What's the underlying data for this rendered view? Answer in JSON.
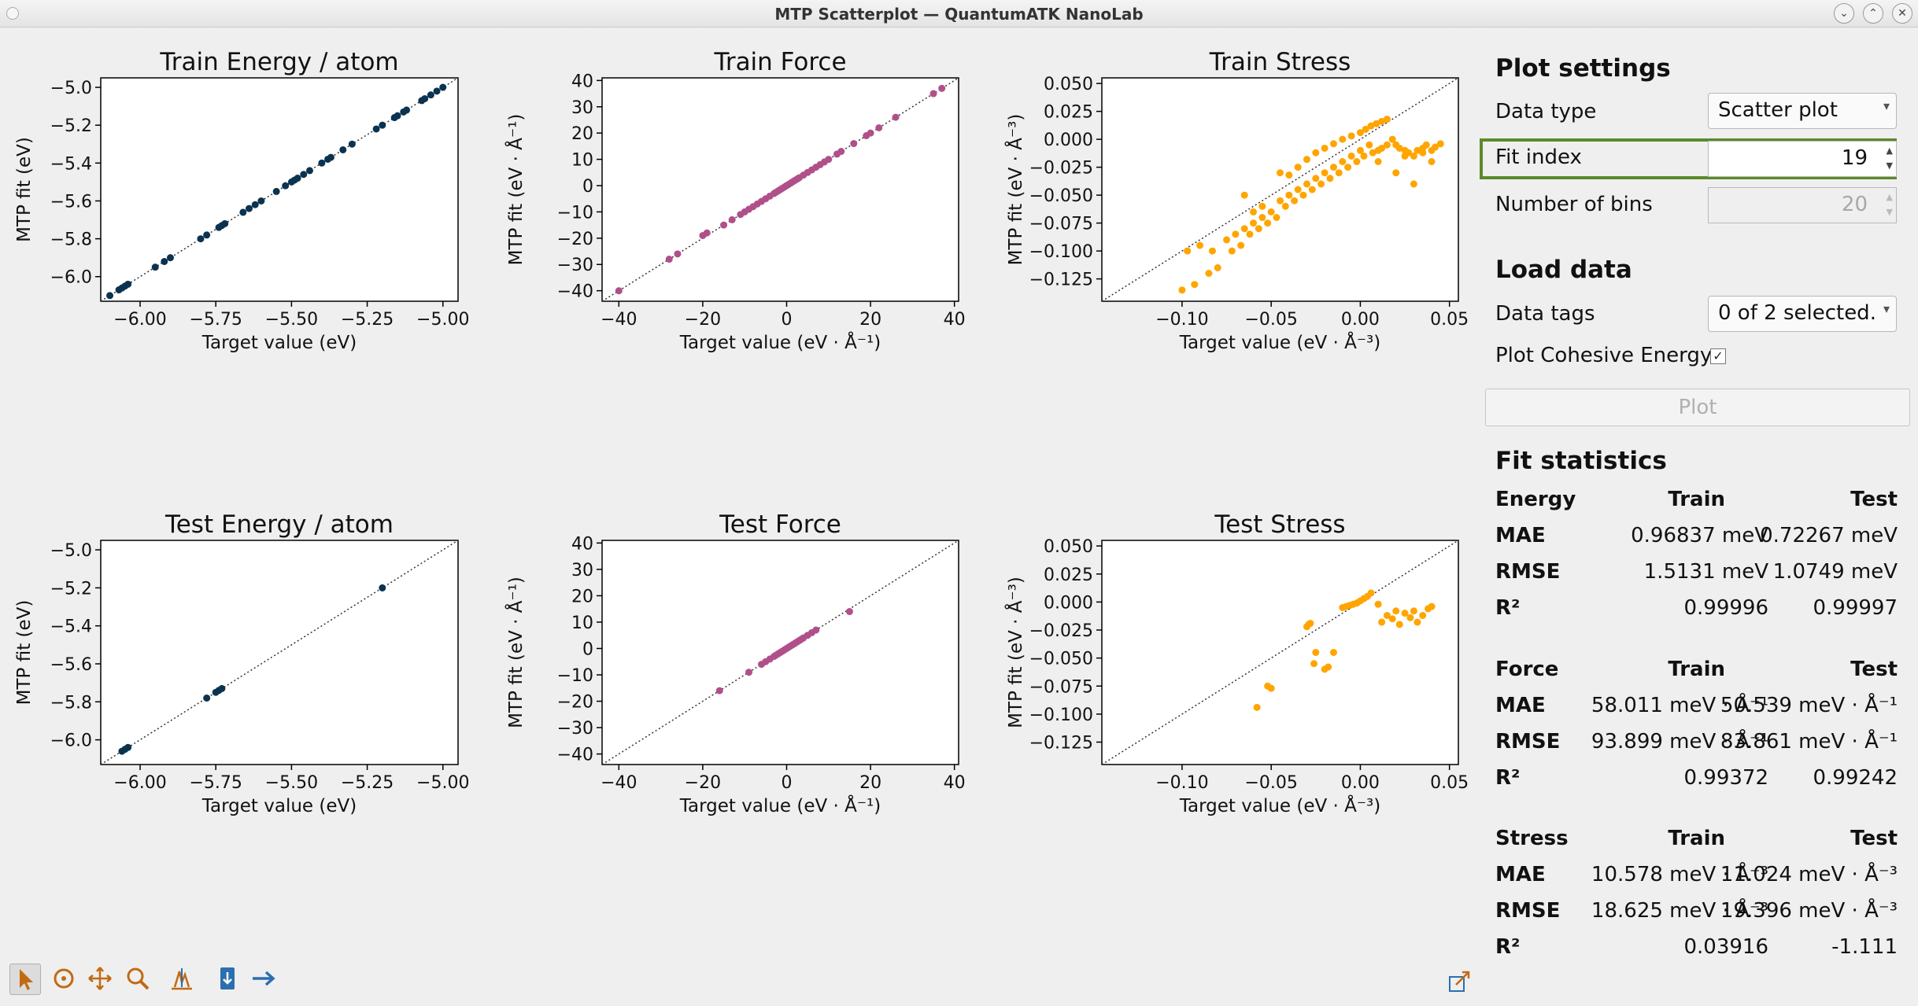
{
  "window": {
    "title": "MTP Scatterplot — QuantumATK NanoLab"
  },
  "toolbar": {
    "icons": [
      "pointer-icon",
      "pan-icon",
      "move-icon",
      "zoom-icon",
      "fit-icon",
      "save-icon",
      "export-icon"
    ],
    "bottom_right_icon": "popout-icon"
  },
  "settings": {
    "heading": "Plot settings",
    "data_type_label": "Data type",
    "data_type_value": "Scatter plot",
    "fit_index_label": "Fit index",
    "fit_index_value": "19",
    "bins_label": "Number of bins",
    "bins_value": "20"
  },
  "load": {
    "heading": "Load data",
    "tags_label": "Data tags",
    "tags_value": "0 of 2 selected.",
    "cohesive_label": "Plot Cohesive Energy",
    "cohesive_checked": "✓",
    "plot_button": "Plot"
  },
  "stats": {
    "heading": "Fit statistics",
    "col_train": "Train",
    "col_test": "Test",
    "groups": [
      {
        "name": "Energy",
        "rows": [
          {
            "label": "MAE",
            "train": "0.96837 meV",
            "test": "0.72267 meV"
          },
          {
            "label": "RMSE",
            "train": "1.5131 meV",
            "test": "1.0749 meV"
          },
          {
            "label": "R²",
            "train": "0.99996",
            "test": "0.99997"
          }
        ]
      },
      {
        "name": "Force",
        "rows": [
          {
            "label": "MAE",
            "train": "58.011 meV · Å⁻¹",
            "test": "50.539 meV · Å⁻¹"
          },
          {
            "label": "RMSE",
            "train": "93.899 meV · Å⁻¹",
            "test": "83.861 meV · Å⁻¹"
          },
          {
            "label": "R²",
            "train": "0.99372",
            "test": "0.99242"
          }
        ]
      },
      {
        "name": "Stress",
        "rows": [
          {
            "label": "MAE",
            "train": "10.578 meV · Å⁻³",
            "test": "11.024 meV · Å⁻³"
          },
          {
            "label": "RMSE",
            "train": "18.625 meV · Å⁻³",
            "test": "19.396 meV · Å⁻³"
          },
          {
            "label": "R²",
            "train": "0.03916",
            "test": "-1.111"
          }
        ]
      }
    ]
  },
  "chart_data": [
    {
      "type": "scatter",
      "title": "Train Energy / atom",
      "xlabel": "Target value (eV)",
      "ylabel": "MTP fit (eV)",
      "xlim": [
        -6.13,
        -4.95
      ],
      "ylim": [
        -6.13,
        -4.95
      ],
      "xticks": [
        -6.0,
        -5.75,
        -5.5,
        -5.25,
        -5.0
      ],
      "yticks": [
        -6.0,
        -5.8,
        -5.6,
        -5.4,
        -5.2,
        -5.0
      ],
      "color": "#0b3350",
      "diagonal": true,
      "x": [
        -6.1,
        -6.07,
        -6.06,
        -6.05,
        -6.04,
        -5.95,
        -5.92,
        -5.9,
        -5.8,
        -5.78,
        -5.74,
        -5.73,
        -5.72,
        -5.66,
        -5.64,
        -5.62,
        -5.6,
        -5.55,
        -5.52,
        -5.5,
        -5.49,
        -5.48,
        -5.46,
        -5.44,
        -5.4,
        -5.38,
        -5.37,
        -5.33,
        -5.3,
        -5.22,
        -5.2,
        -5.16,
        -5.15,
        -5.13,
        -5.12,
        -5.07,
        -5.06,
        -5.04,
        -5.02,
        -5.0
      ],
      "y": [
        -6.1,
        -6.07,
        -6.06,
        -6.05,
        -6.04,
        -5.95,
        -5.92,
        -5.9,
        -5.8,
        -5.78,
        -5.74,
        -5.73,
        -5.72,
        -5.66,
        -5.64,
        -5.62,
        -5.6,
        -5.55,
        -5.52,
        -5.5,
        -5.49,
        -5.48,
        -5.46,
        -5.44,
        -5.4,
        -5.38,
        -5.37,
        -5.33,
        -5.3,
        -5.22,
        -5.2,
        -5.16,
        -5.15,
        -5.13,
        -5.12,
        -5.07,
        -5.06,
        -5.04,
        -5.02,
        -5.0
      ]
    },
    {
      "type": "scatter",
      "title": "Train Force",
      "xlabel": "Target value (eV · Å⁻¹)",
      "ylabel": "MTP fit (eV · Å⁻¹)",
      "xlim": [
        -44,
        41
      ],
      "ylim": [
        -44,
        41
      ],
      "xticks": [
        -40,
        -20,
        0,
        20,
        40
      ],
      "yticks": [
        -40,
        -30,
        -20,
        -10,
        0,
        10,
        20,
        30,
        40
      ],
      "color": "#b0508a",
      "diagonal": true,
      "x": [
        -40,
        -28,
        -26,
        -20,
        -19,
        -15,
        -13,
        -11,
        -10,
        -9,
        -8,
        -7,
        -6,
        -5,
        -4,
        -3,
        -2.5,
        -2,
        -1.5,
        -1,
        -0.5,
        0,
        0.5,
        1,
        1.5,
        2,
        2.5,
        3,
        4,
        5,
        6,
        7,
        8,
        9,
        10,
        12,
        13,
        16,
        19,
        20,
        22,
        26,
        35,
        37
      ],
      "y": [
        -40,
        -28,
        -26,
        -19,
        -18,
        -15,
        -13,
        -11,
        -10,
        -9,
        -8,
        -7,
        -6,
        -5,
        -4,
        -3,
        -2.5,
        -2,
        -1.5,
        -1,
        -0.5,
        0,
        0.5,
        1,
        1.5,
        2,
        2.5,
        3,
        4,
        5,
        6,
        7,
        8,
        9,
        10,
        12,
        13,
        16,
        19,
        20,
        22,
        26,
        35,
        37
      ]
    },
    {
      "type": "scatter",
      "title": "Train Stress",
      "xlabel": "Target value (eV · Å⁻³)",
      "ylabel": "MTP fit (eV · Å⁻³)",
      "xlim": [
        -0.145,
        0.055
      ],
      "ylim": [
        -0.145,
        0.055
      ],
      "xticks": [
        -0.1,
        -0.05,
        0.0,
        0.05
      ],
      "yticks": [
        -0.125,
        -0.1,
        -0.075,
        -0.05,
        -0.025,
        0.0,
        0.025,
        0.05
      ],
      "color": "#ffa500",
      "diagonal": true,
      "x": [
        -0.1,
        -0.097,
        -0.093,
        -0.09,
        -0.085,
        -0.083,
        -0.08,
        -0.075,
        -0.072,
        -0.07,
        -0.067,
        -0.065,
        -0.062,
        -0.06,
        -0.057,
        -0.055,
        -0.052,
        -0.05,
        -0.047,
        -0.045,
        -0.042,
        -0.04,
        -0.037,
        -0.035,
        -0.032,
        -0.03,
        -0.027,
        -0.025,
        -0.022,
        -0.02,
        -0.017,
        -0.015,
        -0.012,
        -0.01,
        -0.007,
        -0.005,
        -0.002,
        0.0,
        0.002,
        0.005,
        0.007,
        0.01,
        0.012,
        0.015,
        0.018,
        0.02,
        0.022,
        0.025,
        0.027,
        0.03,
        0.032,
        0.035,
        0.037,
        0.04,
        0.042,
        0.045,
        -0.035,
        -0.03,
        -0.025,
        -0.02,
        -0.015,
        -0.01,
        -0.005,
        0.0,
        0.003,
        0.006,
        0.009,
        0.012,
        0.015,
        -0.055,
        -0.06,
        -0.065,
        -0.045,
        -0.04,
        0.01,
        0.02,
        0.03,
        0.04,
        0.025,
        0.035
      ],
      "y": [
        -0.135,
        -0.1,
        -0.13,
        -0.095,
        -0.12,
        -0.1,
        -0.115,
        -0.09,
        -0.1,
        -0.085,
        -0.095,
        -0.08,
        -0.085,
        -0.075,
        -0.08,
        -0.07,
        -0.075,
        -0.065,
        -0.07,
        -0.055,
        -0.06,
        -0.05,
        -0.055,
        -0.045,
        -0.05,
        -0.04,
        -0.045,
        -0.035,
        -0.04,
        -0.03,
        -0.035,
        -0.025,
        -0.03,
        -0.02,
        -0.025,
        -0.015,
        -0.02,
        -0.01,
        -0.015,
        -0.005,
        -0.012,
        -0.01,
        -0.008,
        -0.005,
        0.0,
        -0.005,
        -0.008,
        -0.01,
        -0.012,
        -0.015,
        -0.01,
        -0.008,
        -0.005,
        -0.01,
        -0.007,
        -0.004,
        -0.025,
        -0.018,
        -0.012,
        -0.008,
        -0.004,
        0.0,
        0.003,
        0.006,
        0.009,
        0.012,
        0.014,
        0.016,
        0.018,
        -0.06,
        -0.065,
        -0.05,
        -0.03,
        -0.032,
        -0.02,
        -0.03,
        -0.04,
        -0.02,
        -0.015,
        -0.012
      ]
    },
    {
      "type": "scatter",
      "title": "Test Energy / atom",
      "xlabel": "Target value (eV)",
      "ylabel": "MTP fit (eV)",
      "xlim": [
        -6.13,
        -4.95
      ],
      "ylim": [
        -6.13,
        -4.95
      ],
      "xticks": [
        -6.0,
        -5.75,
        -5.5,
        -5.25,
        -5.0
      ],
      "yticks": [
        -6.0,
        -5.8,
        -5.6,
        -5.4,
        -5.2,
        -5.0
      ],
      "color": "#0b3350",
      "diagonal": true,
      "x": [
        -6.06,
        -6.05,
        -6.04,
        -5.78,
        -5.75,
        -5.74,
        -5.73,
        -5.2
      ],
      "y": [
        -6.06,
        -6.05,
        -6.04,
        -5.78,
        -5.75,
        -5.74,
        -5.73,
        -5.2
      ]
    },
    {
      "type": "scatter",
      "title": "Test Force",
      "xlabel": "Target value (eV · Å⁻¹)",
      "ylabel": "MTP fit (eV · Å⁻¹)",
      "xlim": [
        -44,
        41
      ],
      "ylim": [
        -44,
        41
      ],
      "xticks": [
        -40,
        -20,
        0,
        20,
        40
      ],
      "yticks": [
        -40,
        -30,
        -20,
        -10,
        0,
        10,
        20,
        30,
        40
      ],
      "color": "#b0508a",
      "diagonal": true,
      "x": [
        -16,
        -9,
        -6,
        -5,
        -4,
        -3,
        -2.5,
        -2,
        -1.5,
        -1,
        -0.5,
        0,
        0.5,
        1,
        1.5,
        2,
        2.5,
        3,
        3.5,
        4,
        5,
        6,
        7,
        15
      ],
      "y": [
        -16,
        -9,
        -6,
        -5,
        -4,
        -3,
        -2.5,
        -2,
        -1.5,
        -1,
        -0.5,
        0,
        0.5,
        1,
        1.5,
        2,
        2.5,
        3,
        3.5,
        4,
        5,
        6,
        7,
        14
      ]
    },
    {
      "type": "scatter",
      "title": "Test Stress",
      "xlabel": "Target value (eV · Å⁻³)",
      "ylabel": "MTP fit (eV · Å⁻³)",
      "xlim": [
        -0.145,
        0.055
      ],
      "ylim": [
        -0.145,
        0.055
      ],
      "xticks": [
        -0.1,
        -0.05,
        0.0,
        0.05
      ],
      "yticks": [
        -0.125,
        -0.1,
        -0.075,
        -0.05,
        -0.025,
        0.0,
        0.025,
        0.05
      ],
      "color": "#ffa500",
      "diagonal": true,
      "x": [
        -0.058,
        -0.052,
        -0.05,
        -0.03,
        -0.029,
        -0.028,
        -0.026,
        -0.025,
        -0.02,
        -0.018,
        -0.015,
        -0.01,
        -0.008,
        -0.006,
        -0.004,
        -0.002,
        0.0,
        0.002,
        0.004,
        0.006,
        0.01,
        0.012,
        0.015,
        0.018,
        0.02,
        0.022,
        0.025,
        0.028,
        0.03,
        0.032,
        0.035,
        0.038,
        0.04
      ],
      "y": [
        -0.094,
        -0.075,
        -0.077,
        -0.022,
        -0.02,
        -0.019,
        -0.055,
        -0.045,
        -0.06,
        -0.058,
        -0.045,
        -0.005,
        -0.004,
        -0.003,
        -0.002,
        -0.001,
        0.001,
        0.003,
        0.005,
        0.008,
        -0.002,
        -0.018,
        -0.012,
        -0.015,
        -0.008,
        -0.02,
        -0.01,
        -0.014,
        -0.008,
        -0.018,
        -0.012,
        -0.006,
        -0.004
      ]
    }
  ]
}
